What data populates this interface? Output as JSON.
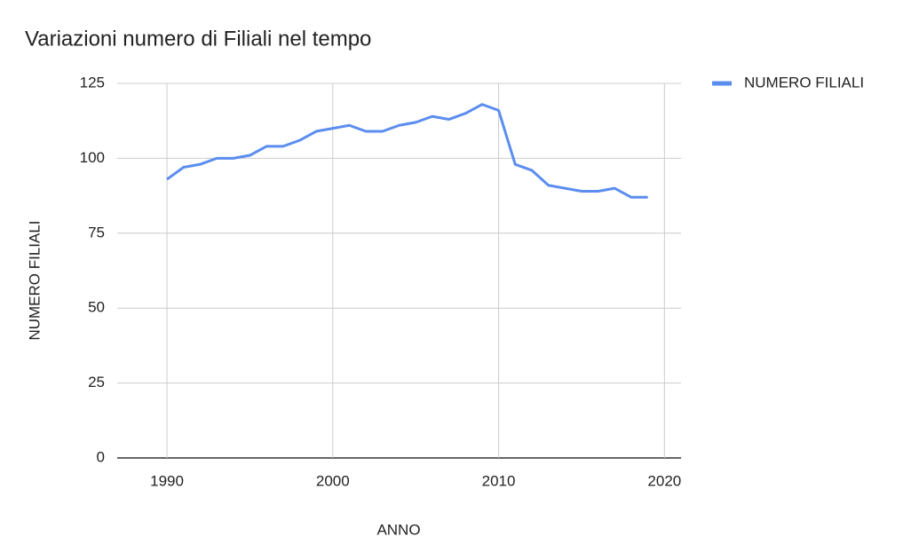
{
  "chart_data": {
    "type": "line",
    "title": "Variazioni numero di Filiali nel tempo",
    "xlabel": "ANNO",
    "ylabel": "NUMERO FILIALI",
    "x": [
      1990,
      1991,
      1992,
      1993,
      1994,
      1995,
      1996,
      1997,
      1998,
      1999,
      2000,
      2001,
      2002,
      2003,
      2004,
      2005,
      2006,
      2007,
      2008,
      2009,
      2010,
      2011,
      2012,
      2013,
      2014,
      2015,
      2016,
      2017,
      2018,
      2019
    ],
    "series": [
      {
        "name": "NUMERO FILIALI",
        "color": "#5b8def",
        "values": [
          93,
          97,
          98,
          100,
          100,
          101,
          104,
          104,
          106,
          109,
          110,
          111,
          109,
          109,
          111,
          112,
          114,
          113,
          115,
          118,
          116,
          98,
          96,
          91,
          90,
          89,
          89,
          90,
          87,
          87
        ]
      }
    ],
    "xlim": [
      1987,
      2021
    ],
    "xticks": [
      1990,
      2000,
      2010,
      2020
    ],
    "ylim": [
      0,
      125
    ],
    "yticks": [
      0,
      25,
      50,
      75,
      100,
      125
    ],
    "grid": true,
    "legend": "right"
  }
}
